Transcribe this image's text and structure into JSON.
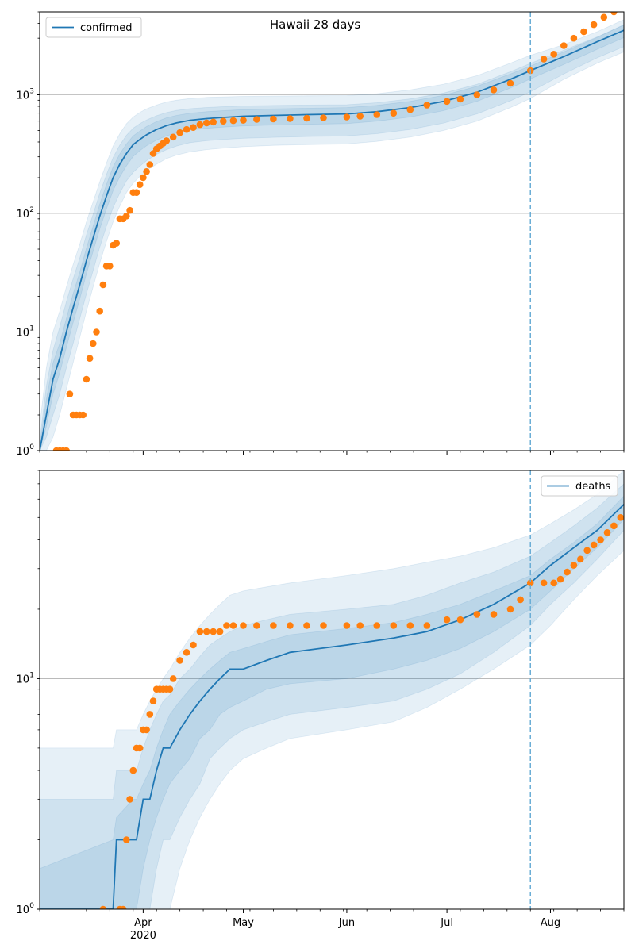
{
  "title": "Hawaii 28 days",
  "colors": {
    "model": "#1f77b4",
    "observed": "#ff7f0e",
    "band": "#1f77b4",
    "forecast_line": "#6baed6",
    "grid": "#b0b0b0"
  },
  "chart_data": [
    {
      "type": "line",
      "name": "confirmed",
      "legend": "confirmed",
      "legend_position": "top-left",
      "yscale": "log",
      "ylim": [
        1,
        5000
      ],
      "xlim": [
        "2020-03-01",
        "2020-08-23"
      ],
      "forecast_start": "2020-07-26",
      "y_ticks": [
        {
          "value": 1,
          "label": "10",
          "exp": "0"
        },
        {
          "value": 10,
          "label": "10",
          "exp": "1"
        },
        {
          "value": 100,
          "label": "10",
          "exp": "2"
        },
        {
          "value": 1000,
          "label": "10",
          "exp": "3"
        }
      ],
      "grid": true,
      "model": {
        "x": [
          "2020-03-01",
          "2020-03-03",
          "2020-03-05",
          "2020-03-07",
          "2020-03-09",
          "2020-03-11",
          "2020-03-13",
          "2020-03-15",
          "2020-03-17",
          "2020-03-19",
          "2020-03-21",
          "2020-03-23",
          "2020-03-25",
          "2020-03-27",
          "2020-03-29",
          "2020-03-31",
          "2020-04-02",
          "2020-04-05",
          "2020-04-08",
          "2020-04-11",
          "2020-04-15",
          "2020-04-20",
          "2020-04-25",
          "2020-05-01",
          "2020-05-10",
          "2020-05-20",
          "2020-06-01",
          "2020-06-10",
          "2020-06-20",
          "2020-06-30",
          "2020-07-10",
          "2020-07-20",
          "2020-07-26",
          "2020-08-05",
          "2020-08-15",
          "2020-08-23"
        ],
        "y": [
          1,
          2,
          4,
          6,
          10,
          16,
          25,
          40,
          62,
          95,
          140,
          200,
          260,
          320,
          380,
          420,
          460,
          510,
          550,
          580,
          610,
          630,
          645,
          660,
          670,
          680,
          690,
          720,
          780,
          880,
          1050,
          1350,
          1600,
          2100,
          2800,
          3500
        ]
      },
      "bands": [
        {
          "lo": [
            1,
            1,
            1.3,
            2,
            3.3,
            5.5,
            9,
            15,
            24,
            38,
            58,
            85,
            115,
            150,
            180,
            205,
            230,
            260,
            290,
            310,
            330,
            345,
            355,
            365,
            375,
            380,
            385,
            405,
            440,
            500,
            600,
            780,
            930,
            1350,
            1850,
            2300
          ],
          "hi": [
            1.6,
            5,
            10,
            15,
            24,
            37,
            55,
            85,
            125,
            185,
            265,
            370,
            470,
            570,
            650,
            710,
            760,
            820,
            870,
            900,
            930,
            950,
            960,
            970,
            975,
            980,
            985,
            1020,
            1100,
            1230,
            1450,
            1850,
            2150,
            2650,
            3400,
            4300
          ]
        },
        {
          "lo": [
            1,
            1.3,
            2,
            3,
            5,
            8,
            13,
            21,
            33,
            52,
            78,
            112,
            148,
            188,
            222,
            250,
            278,
            315,
            345,
            370,
            395,
            410,
            420,
            430,
            438,
            445,
            450,
            470,
            510,
            578,
            690,
            890,
            1060,
            1500,
            2050,
            2550
          ],
          "hi": [
            1.2,
            3.5,
            7,
            11,
            18,
            28,
            42,
            66,
            98,
            148,
            212,
            296,
            376,
            456,
            524,
            572,
            614,
            666,
            708,
            738,
            764,
            782,
            794,
            806,
            813,
            820,
            825,
            857,
            925,
            1035,
            1225,
            1565,
            1840,
            2380,
            3080,
            3870
          ]
        },
        {
          "lo": [
            1,
            1.6,
            3,
            4.5,
            7.4,
            12,
            19,
            31,
            48,
            74,
            109,
            156,
            203,
            252,
            302,
            338,
            372,
            415,
            450,
            477,
            503,
            522,
            534,
            547,
            556,
            564,
            572,
            600,
            650,
            735,
            880,
            1140,
            1360,
            1800,
            2420,
            3030
          ],
          "hi": [
            1.1,
            2.7,
            5.5,
            8,
            13,
            21,
            32,
            51,
            78,
            120,
            175,
            247,
            317,
            385,
            450,
            495,
            540,
            595,
            640,
            670,
            700,
            720,
            735,
            750,
            760,
            770,
            780,
            815,
            880,
            990,
            1180,
            1500,
            1750,
            2300,
            3050,
            3900
          ]
        }
      ],
      "observed": {
        "x": [
          "2020-03-06",
          "2020-03-07",
          "2020-03-08",
          "2020-03-09",
          "2020-03-10",
          "2020-03-11",
          "2020-03-12",
          "2020-03-13",
          "2020-03-14",
          "2020-03-15",
          "2020-03-16",
          "2020-03-17",
          "2020-03-18",
          "2020-03-19",
          "2020-03-20",
          "2020-03-21",
          "2020-03-22",
          "2020-03-23",
          "2020-03-24",
          "2020-03-25",
          "2020-03-26",
          "2020-03-27",
          "2020-03-28",
          "2020-03-29",
          "2020-03-30",
          "2020-03-31",
          "2020-04-01",
          "2020-04-02",
          "2020-04-03",
          "2020-04-04",
          "2020-04-05",
          "2020-04-06",
          "2020-04-07",
          "2020-04-08",
          "2020-04-10",
          "2020-04-12",
          "2020-04-14",
          "2020-04-16",
          "2020-04-18",
          "2020-04-20",
          "2020-04-22",
          "2020-04-25",
          "2020-04-28",
          "2020-05-01",
          "2020-05-05",
          "2020-05-10",
          "2020-05-15",
          "2020-05-20",
          "2020-05-25",
          "2020-06-01",
          "2020-06-05",
          "2020-06-10",
          "2020-06-15",
          "2020-06-20",
          "2020-06-25",
          "2020-07-01",
          "2020-07-05",
          "2020-07-10",
          "2020-07-15",
          "2020-07-20",
          "2020-07-26",
          "2020-07-30",
          "2020-08-02",
          "2020-08-05",
          "2020-08-08",
          "2020-08-11",
          "2020-08-14",
          "2020-08-17",
          "2020-08-20",
          "2020-08-23"
        ],
        "y": [
          1,
          1,
          1,
          1,
          3,
          2,
          2,
          2,
          2,
          4,
          6,
          8,
          10,
          15,
          25,
          36,
          36,
          54,
          56,
          90,
          90,
          95,
          106,
          150,
          150,
          175,
          200,
          225,
          258,
          320,
          350,
          370,
          390,
          410,
          440,
          480,
          510,
          530,
          560,
          580,
          590,
          600,
          605,
          610,
          620,
          625,
          630,
          635,
          640,
          650,
          660,
          680,
          700,
          750,
          820,
          880,
          920,
          1000,
          1100,
          1250,
          1600,
          2000,
          2200,
          2600,
          3000,
          3400,
          3900,
          4500,
          5000,
          5400
        ]
      }
    },
    {
      "type": "line",
      "name": "deaths",
      "legend": "deaths",
      "legend_position": "top-right",
      "yscale": "log",
      "ylim": [
        1,
        80
      ],
      "xlim": [
        "2020-03-01",
        "2020-08-23"
      ],
      "forecast_start": "2020-07-26",
      "y_ticks": [
        {
          "value": 1,
          "label": "10",
          "exp": "0"
        },
        {
          "value": 10,
          "label": "10",
          "exp": "1"
        }
      ],
      "x_ticks": [
        {
          "date": "2020-04-01",
          "label": "Apr",
          "sub": "2020"
        },
        {
          "date": "2020-05-01",
          "label": "May",
          "sub": ""
        },
        {
          "date": "2020-06-01",
          "label": "Jun",
          "sub": ""
        },
        {
          "date": "2020-07-01",
          "label": "Jul",
          "sub": ""
        },
        {
          "date": "2020-08-01",
          "label": "Aug",
          "sub": ""
        }
      ],
      "grid": true,
      "model": {
        "x": [
          "2020-03-01",
          "2020-03-23",
          "2020-03-24",
          "2020-03-29",
          "2020-03-30",
          "2020-04-01",
          "2020-04-03",
          "2020-04-05",
          "2020-04-07",
          "2020-04-09",
          "2020-04-12",
          "2020-04-15",
          "2020-04-18",
          "2020-04-21",
          "2020-04-24",
          "2020-04-27",
          "2020-05-01",
          "2020-05-08",
          "2020-05-15",
          "2020-06-01",
          "2020-06-15",
          "2020-06-25",
          "2020-07-05",
          "2020-07-15",
          "2020-07-26",
          "2020-08-01",
          "2020-08-08",
          "2020-08-15",
          "2020-08-23"
        ],
        "y": [
          1,
          1,
          2,
          2,
          2,
          3,
          3,
          4,
          5,
          5,
          6,
          7,
          8,
          9,
          10,
          11,
          11,
          12,
          13,
          14,
          15,
          16,
          18,
          21,
          26,
          31,
          37,
          44,
          57
        ]
      },
      "bands": [
        {
          "lo": [
            1,
            1,
            1,
            1,
            1,
            1,
            1,
            1,
            1,
            1,
            1.5,
            2,
            2.5,
            3,
            3.5,
            4,
            4.5,
            5,
            5.5,
            6,
            6.5,
            7.5,
            9,
            11,
            14,
            17,
            22,
            28,
            36
          ],
          "hi": [
            5,
            5,
            6,
            6,
            6,
            7,
            8,
            9,
            10,
            11,
            13,
            15,
            17,
            19,
            21,
            23,
            24,
            25,
            26,
            28,
            30,
            32,
            34,
            37,
            42,
            47,
            54,
            63,
            80
          ]
        },
        {
          "lo": [
            1,
            1,
            1,
            1,
            1,
            1,
            1,
            1.5,
            2,
            2,
            2.5,
            3,
            3.5,
            4.5,
            5,
            5.5,
            6,
            6.5,
            7,
            7.5,
            8,
            9,
            10.5,
            13,
            17,
            21,
            26,
            33,
            44
          ],
          "hi": [
            3,
            3,
            4,
            4,
            4,
            5,
            6,
            7,
            8,
            8.5,
            10,
            11,
            12.5,
            14,
            15,
            16,
            17,
            18,
            19,
            20,
            21,
            23,
            26,
            29,
            34,
            39,
            46,
            55,
            70
          ]
        },
        {
          "lo": [
            1,
            1,
            1,
            1,
            1,
            1.5,
            2,
            2.5,
            3,
            3.5,
            4,
            4.5,
            5.5,
            6,
            7,
            7.5,
            8,
            9,
            9.5,
            10,
            11,
            12,
            13.5,
            16,
            20,
            24,
            30,
            37,
            49
          ],
          "hi": [
            1.5,
            2,
            2.5,
            3,
            3,
            3.5,
            4,
            5,
            6,
            7,
            8,
            9,
            10,
            11,
            12,
            13,
            13.5,
            14.5,
            15.5,
            16.5,
            17.5,
            19,
            21,
            24,
            28,
            33,
            39,
            47,
            62
          ]
        }
      ],
      "observed": {
        "x": [
          "2020-03-20",
          "2020-03-25",
          "2020-03-26",
          "2020-03-27",
          "2020-03-28",
          "2020-03-29",
          "2020-03-30",
          "2020-03-31",
          "2020-04-01",
          "2020-04-02",
          "2020-04-03",
          "2020-04-04",
          "2020-04-05",
          "2020-04-06",
          "2020-04-07",
          "2020-04-08",
          "2020-04-09",
          "2020-04-10",
          "2020-04-12",
          "2020-04-14",
          "2020-04-16",
          "2020-04-18",
          "2020-04-20",
          "2020-04-22",
          "2020-04-24",
          "2020-04-26",
          "2020-04-28",
          "2020-05-01",
          "2020-05-05",
          "2020-05-10",
          "2020-05-15",
          "2020-05-20",
          "2020-05-25",
          "2020-06-01",
          "2020-06-05",
          "2020-06-10",
          "2020-06-15",
          "2020-06-20",
          "2020-06-25",
          "2020-07-01",
          "2020-07-05",
          "2020-07-10",
          "2020-07-15",
          "2020-07-20",
          "2020-07-23",
          "2020-07-26",
          "2020-07-30",
          "2020-08-02",
          "2020-08-04",
          "2020-08-06",
          "2020-08-08",
          "2020-08-10",
          "2020-08-12",
          "2020-08-14",
          "2020-08-16",
          "2020-08-18",
          "2020-08-20",
          "2020-08-22"
        ],
        "y": [
          1,
          1,
          1,
          2,
          3,
          4,
          5,
          5,
          6,
          6,
          7,
          8,
          9,
          9,
          9,
          9,
          9,
          10,
          12,
          13,
          14,
          16,
          16,
          16,
          16,
          17,
          17,
          17,
          17,
          17,
          17,
          17,
          17,
          17,
          17,
          17,
          17,
          17,
          17,
          18,
          18,
          19,
          19,
          20,
          22,
          26,
          26,
          26,
          27,
          29,
          31,
          33,
          36,
          38,
          40,
          43,
          46,
          50
        ]
      }
    }
  ]
}
